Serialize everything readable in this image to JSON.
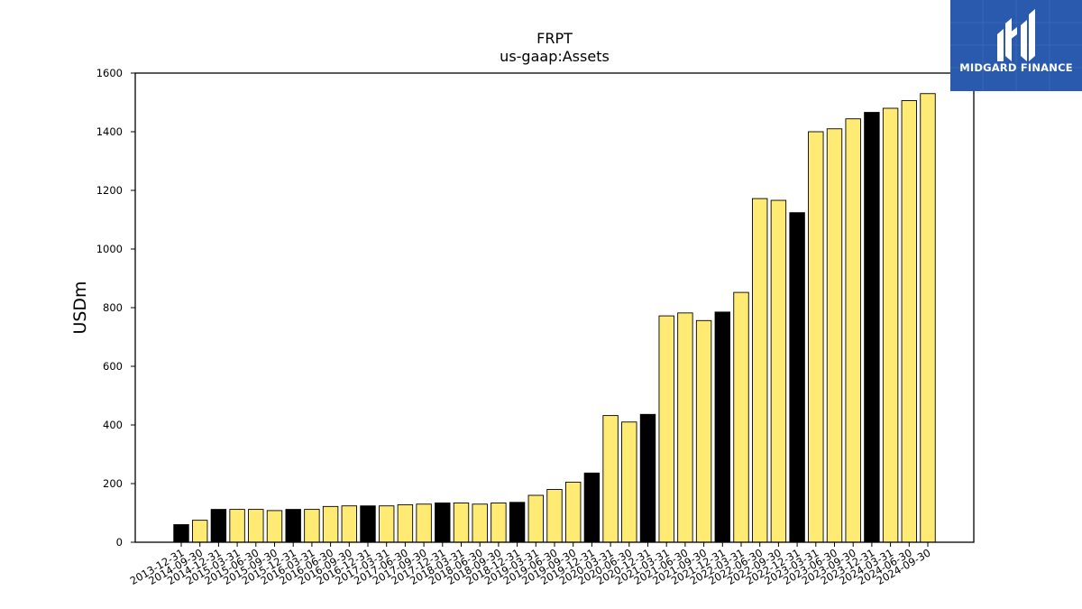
{
  "chart_data": {
    "type": "bar",
    "title": "FRPT",
    "subtitle": "us-gaap:Assets",
    "xlabel": "",
    "ylabel": "USDm",
    "ylim": [
      0,
      1600
    ],
    "yticks": [
      0,
      200,
      400,
      600,
      800,
      1000,
      1200,
      1400,
      1600
    ],
    "grid": false,
    "colors": {
      "quarter": "#ffeb73",
      "year_end": "#000000",
      "edge": "#000000"
    },
    "categories": [
      "2013-12-31",
      "2014-09-30",
      "2014-12-31",
      "2015-03-31",
      "2015-06-30",
      "2015-09-30",
      "2015-12-31",
      "2016-03-31",
      "2016-06-30",
      "2016-09-30",
      "2016-12-31",
      "2017-03-31",
      "2017-06-30",
      "2017-09-30",
      "2017-12-31",
      "2018-03-31",
      "2018-06-30",
      "2018-09-30",
      "2018-12-31",
      "2019-03-31",
      "2019-06-30",
      "2019-09-30",
      "2019-12-31",
      "2020-03-31",
      "2020-06-30",
      "2020-12-31",
      "2021-03-31",
      "2021-06-30",
      "2021-09-30",
      "2021-12-31",
      "2022-03-31",
      "2022-06-30",
      "2022-09-30",
      "2022-12-31",
      "2023-03-31",
      "2023-06-30",
      "2023-09-30",
      "2023-12-31",
      "2024-03-31",
      "2024-06-30",
      "2024-09-30"
    ],
    "values": [
      60,
      75,
      112,
      112,
      112,
      108,
      112,
      112,
      122,
      124,
      124,
      124,
      128,
      130,
      134,
      134,
      130,
      134,
      136,
      160,
      180,
      205,
      236,
      432,
      410,
      436,
      772,
      782,
      756,
      785,
      852,
      1172,
      1166,
      1124,
      1400,
      1410,
      1444,
      1466,
      1480,
      1506,
      1530
    ],
    "highlight": [
      true,
      false,
      true,
      false,
      false,
      false,
      true,
      false,
      false,
      false,
      true,
      false,
      false,
      false,
      true,
      false,
      false,
      false,
      true,
      false,
      false,
      false,
      true,
      false,
      false,
      true,
      false,
      false,
      false,
      true,
      false,
      false,
      false,
      true,
      false,
      false,
      false,
      true,
      false,
      false,
      false
    ]
  },
  "logo": {
    "text": "MIDGARD FINANCE",
    "color": "#2a5aad"
  }
}
